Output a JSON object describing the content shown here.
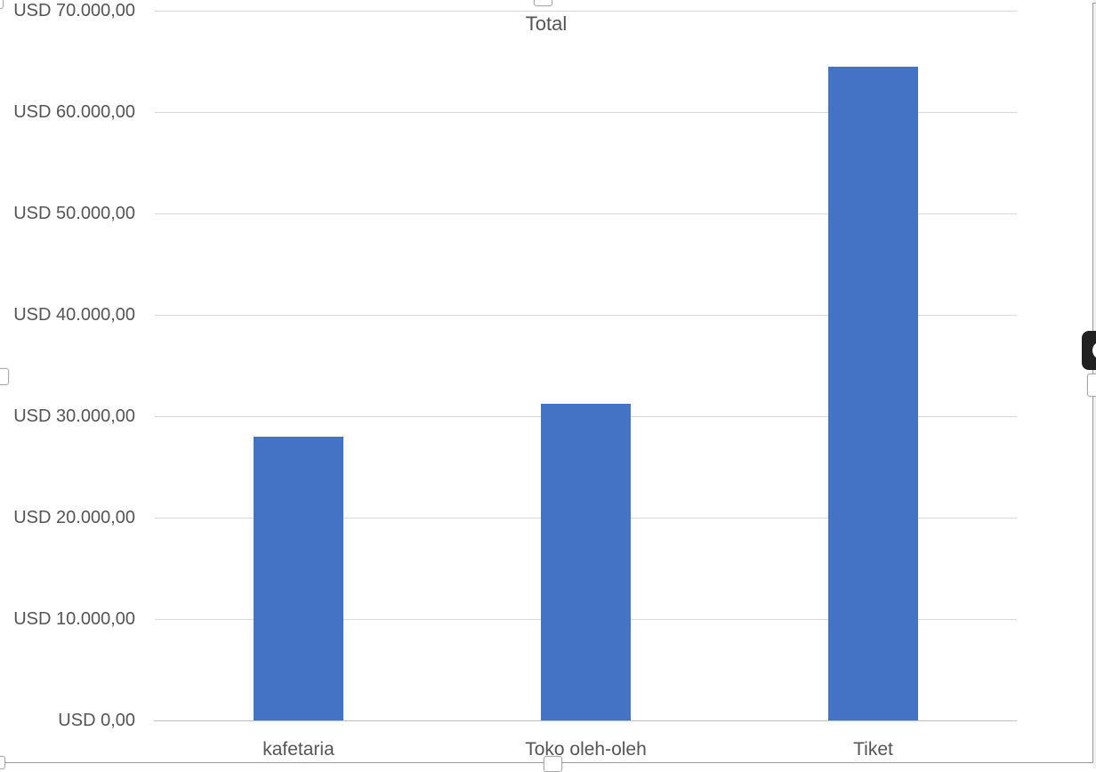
{
  "chart_data": {
    "type": "bar",
    "title": "Total",
    "categories": [
      "kafetaria",
      "Toko oleh-oleh",
      "Tiket"
    ],
    "series": [
      {
        "name": "Total",
        "values": [
          28000,
          31200,
          64500
        ]
      }
    ],
    "xlabel": "",
    "ylabel": "",
    "ylim": [
      0,
      70000
    ],
    "y_tick_step": 10000,
    "y_tick_labels": [
      "USD 0,00",
      "USD 10.000,00",
      "USD 20.000,00",
      "USD 30.000,00",
      "USD 40.000,00",
      "USD 50.000,00",
      "USD 60.000,00",
      "USD 70.000,00"
    ],
    "grid": "horizontal",
    "legend": "none",
    "colors": {
      "bar": "#4472C4",
      "gridline": "#d9d9d9",
      "axis_line": "#c3c3c3",
      "text": "#555555",
      "chart_border": "#9b9b9b"
    }
  },
  "selection": {
    "state": "chart-selected",
    "handles": [
      "top-left",
      "top-center",
      "left-middle",
      "right-middle",
      "bottom-left",
      "bottom-center"
    ],
    "side_button": {
      "icon": "circle-glyph",
      "background": "#212121"
    }
  }
}
